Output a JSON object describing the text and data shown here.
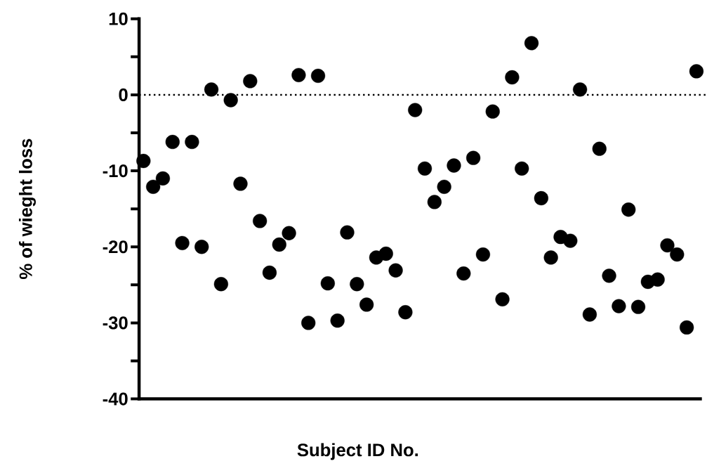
{
  "chart_data": {
    "type": "scatter",
    "xlabel": "Subject  ID No.",
    "ylabel": "% of wieght loss",
    "categories": [
      null,
      null,
      null,
      null,
      null,
      null,
      null,
      null,
      null,
      null,
      null,
      null,
      null,
      null,
      null,
      null,
      null,
      null,
      null,
      null,
      null,
      null,
      null,
      null,
      null,
      null,
      null,
      null,
      null,
      null,
      null,
      null,
      null,
      null,
      null,
      null,
      null,
      null,
      null,
      null,
      null,
      null,
      null,
      null,
      null,
      null,
      null,
      null,
      null,
      null,
      null,
      null,
      null,
      null,
      null,
      null,
      null,
      null
    ],
    "values": [
      -8.7,
      -12.1,
      -11,
      -6.2,
      -19.5,
      -6.2,
      -20,
      0.7,
      -24.9,
      -0.7,
      -11.7,
      1.8,
      -16.6,
      -23.4,
      -19.7,
      -18.2,
      2.6,
      -30,
      2.5,
      -24.8,
      -29.7,
      -18.1,
      -24.9,
      -27.6,
      -21.4,
      -20.9,
      -23.1,
      -28.6,
      -2,
      -9.7,
      -14.1,
      -12.1,
      -9.3,
      -23.5,
      -8.3,
      -21,
      -2.2,
      -26.9,
      2.3,
      -9.7,
      6.8,
      -13.6,
      -21.4,
      -18.7,
      -19.2,
      0.7,
      -28.9,
      -7.1,
      -23.8,
      -27.8,
      -15.1,
      -27.9,
      -24.6,
      -24.3,
      -19.8,
      -21,
      -30.6,
      3.1
    ],
    "color": "#000000",
    "marker": "circle",
    "grid": false,
    "legend": false,
    "tick_labels": "y",
    "ylim": [
      -40,
      10
    ],
    "yticks": [
      -40,
      {
        "value": -35,
        "label": null
      },
      -30,
      {
        "value": -25,
        "label": null
      },
      -20,
      {
        "value": -15,
        "label": null
      },
      -10,
      {
        "value": -5,
        "label": null
      },
      0,
      {
        "value": 5,
        "label": null
      },
      10
    ],
    "ref_lines": [
      {
        "axis": "y",
        "value": 0,
        "line_style": "dotted",
        "color": "#000000"
      }
    ]
  }
}
